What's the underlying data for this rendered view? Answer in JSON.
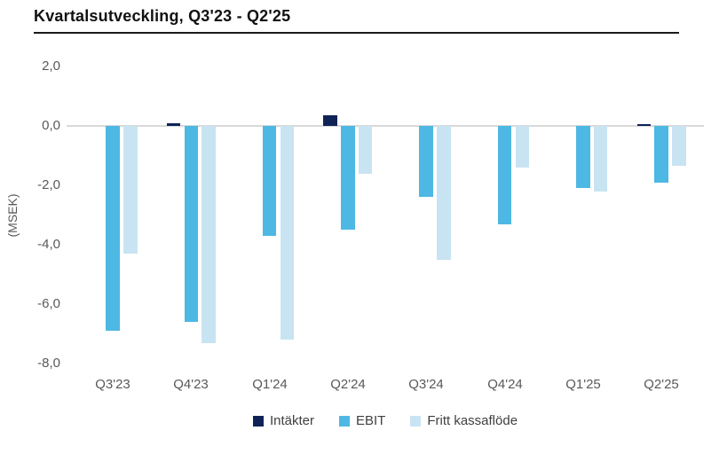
{
  "title": "Kvartalsutveckling, Q3'23 - Q2'25",
  "chart_data": {
    "type": "bar",
    "title": "Kvartalsutveckling, Q3'23 - Q2'25",
    "ylabel": "(MSEK)",
    "xlabel": "",
    "ylim": [
      -8,
      2
    ],
    "grid": false,
    "legend_position": "bottom",
    "categories": [
      "Q3'23",
      "Q4'23",
      "Q1'24",
      "Q2'24",
      "Q3'24",
      "Q4'24",
      "Q1'25",
      "Q2'25"
    ],
    "yticks": [
      {
        "value": 2,
        "label": "2,0"
      },
      {
        "value": 0,
        "label": "0,0"
      },
      {
        "value": -2,
        "label": "-2,0"
      },
      {
        "value": -4,
        "label": "-4,0"
      },
      {
        "value": -6,
        "label": "-6,0"
      },
      {
        "value": -8,
        "label": "-8,0"
      }
    ],
    "series": [
      {
        "name": "Intäkter",
        "color": "#0f2357",
        "values": [
          0,
          0.1,
          0,
          0.35,
          0,
          0,
          0,
          0.05
        ]
      },
      {
        "name": "EBIT",
        "color": "#4db8e3",
        "values": [
          -6.9,
          -6.6,
          -3.7,
          -3.5,
          -2.4,
          -3.3,
          -2.1,
          -1.9
        ]
      },
      {
        "name": "Fritt kassaflöde",
        "color": "#c8e4f2",
        "values": [
          -4.3,
          -7.3,
          -7.2,
          -1.6,
          -4.5,
          -1.4,
          -2.2,
          -1.35
        ]
      }
    ]
  },
  "colors": {
    "zero_line": "#d9d9d9",
    "axis_text": "#595959",
    "legend_text": "#404040",
    "title_text": "#111111",
    "title_rule": "#1a1a1a",
    "background": "#ffffff"
  }
}
